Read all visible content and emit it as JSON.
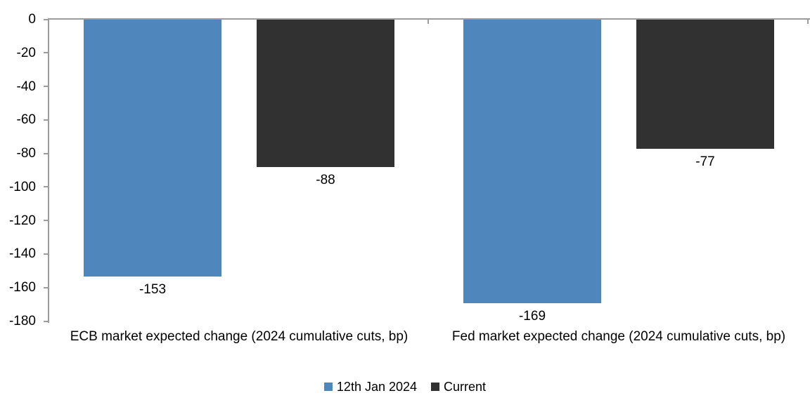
{
  "chart_data": {
    "type": "bar",
    "categories": [
      "ECB market expected change (2024 cumulative cuts, bp)",
      "Fed market expected change (2024 cumulative cuts, bp)"
    ],
    "series": [
      {
        "name": "12th Jan 2024",
        "color": "#4F87BC",
        "values": [
          -153,
          -169
        ]
      },
      {
        "name": "Current",
        "color": "#323131",
        "values": [
          -88,
          -77
        ]
      }
    ],
    "data_labels": [
      "-153",
      "-169",
      "-88",
      "-77"
    ],
    "ylim": [
      -180,
      0
    ],
    "yticks": [
      0,
      -20,
      -40,
      -60,
      -80,
      -100,
      -120,
      -140,
      -160,
      -180
    ],
    "grid": false,
    "legend_position": "bottom",
    "axis_color": "#9C9C9C",
    "label_color": "#000000",
    "background_color": "#FFFFFF"
  }
}
